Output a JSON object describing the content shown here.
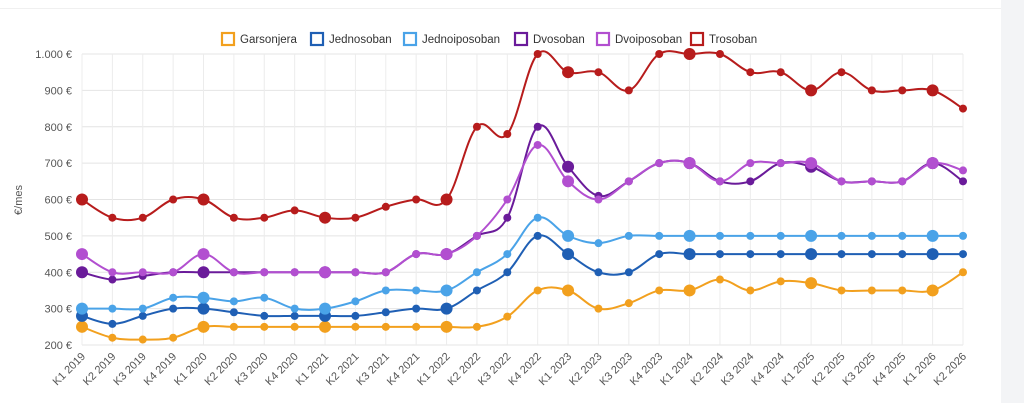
{
  "chart_data": {
    "type": "line",
    "ylabel": "€/mes",
    "ylim": [
      200,
      1000
    ],
    "grid": true,
    "legend_position": "top",
    "y_ticks": [
      "1.000 €",
      "900 €",
      "800 €",
      "700 €",
      "600 €",
      "500 €",
      "400 €",
      "300 €",
      "200 €"
    ],
    "x": [
      "K1 2019",
      "K2 2019",
      "K3 2019",
      "K4 2019",
      "K1 2020",
      "K2 2020",
      "K3 2020",
      "K4 2020",
      "K1 2021",
      "K2 2021",
      "K3 2021",
      "K4 2021",
      "K1 2022",
      "K2 2022",
      "K3 2022",
      "K4 2022",
      "K1 2023",
      "K2 2023",
      "K3 2023",
      "K4 2023",
      "K1 2024",
      "K2 2024",
      "K3 2024",
      "K4 2024",
      "K1 2025",
      "K2 2025",
      "K3 2025",
      "K4 2025",
      "K1 2026",
      "K2 2026"
    ],
    "series": [
      {
        "name": "Garsonjera",
        "color": "#f2a01e",
        "values": [
          250,
          220,
          215,
          220,
          250,
          250,
          250,
          250,
          250,
          250,
          250,
          250,
          250,
          250,
          278,
          350,
          350,
          300,
          315,
          350,
          350,
          380,
          350,
          375,
          370,
          350,
          350,
          350,
          350,
          400
        ]
      },
      {
        "name": "Jednosoban",
        "color": "#1f5fb4",
        "values": [
          280,
          258,
          280,
          300,
          300,
          290,
          280,
          280,
          280,
          280,
          290,
          300,
          300,
          350,
          400,
          500,
          450,
          400,
          400,
          450,
          450,
          450,
          450,
          450,
          450,
          450,
          450,
          450,
          450,
          450
        ]
      },
      {
        "name": "Jednoiposoban",
        "color": "#4aa3e8",
        "values": [
          300,
          300,
          300,
          330,
          330,
          320,
          330,
          300,
          300,
          320,
          350,
          350,
          350,
          400,
          450,
          550,
          500,
          480,
          500,
          500,
          500,
          500,
          500,
          500,
          500,
          500,
          500,
          500,
          500,
          500
        ]
      },
      {
        "name": "Dvosoban",
        "color": "#6a1b9a",
        "values": [
          400,
          380,
          390,
          400,
          400,
          400,
          400,
          400,
          400,
          400,
          400,
          450,
          450,
          500,
          550,
          800,
          690,
          610,
          650,
          700,
          700,
          650,
          650,
          700,
          690,
          650,
          650,
          650,
          700,
          650
        ]
      },
      {
        "name": "Dvoiposoban",
        "color": "#b24fd0",
        "values": [
          450,
          400,
          400,
          400,
          450,
          400,
          400,
          400,
          400,
          400,
          400,
          450,
          450,
          500,
          600,
          750,
          650,
          600,
          650,
          700,
          700,
          650,
          700,
          700,
          700,
          650,
          650,
          650,
          700,
          680
        ]
      },
      {
        "name": "Trosoban",
        "color": "#b71c1c",
        "values": [
          600,
          550,
          550,
          600,
          600,
          550,
          550,
          570,
          550,
          550,
          580,
          600,
          600,
          800,
          780,
          1000,
          950,
          950,
          900,
          1000,
          1000,
          1000,
          950,
          950,
          900,
          950,
          900,
          900,
          900,
          850
        ]
      }
    ]
  }
}
